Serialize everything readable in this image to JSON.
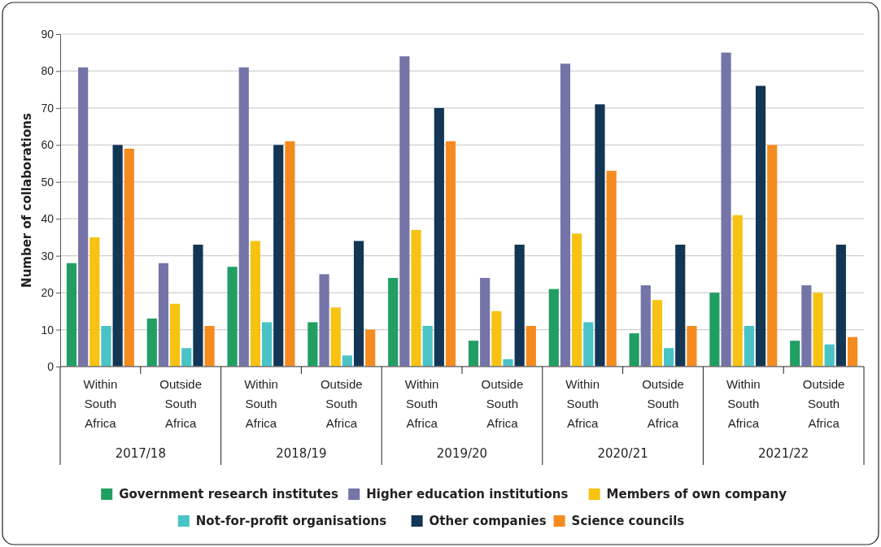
{
  "chart_data": {
    "type": "bar",
    "ylabel": "Number of collaborations",
    "categories": [
      "Within South Africa",
      "Outside South Africa",
      "Within South Africa",
      "Outside South Africa",
      "Within South Africa",
      "Outside South Africa",
      "Within South Africa",
      "Outside South Africa",
      "Within South Africa",
      "Outside South Africa"
    ],
    "annotations": [
      "2017/18",
      "2018/19",
      "2019/20",
      "2020/21",
      "2021/22"
    ],
    "series": [
      {
        "name": "Government research institutes",
        "color": "#219e62",
        "values": [
          28,
          13,
          27,
          12,
          24,
          7,
          21,
          9,
          20,
          7
        ]
      },
      {
        "name": "Higher education institutions",
        "color": "#7474a8",
        "values": [
          81,
          28,
          81,
          25,
          84,
          24,
          82,
          22,
          85,
          22
        ]
      },
      {
        "name": "Members of own company",
        "color": "#f7c212",
        "values": [
          35,
          17,
          34,
          16,
          37,
          15,
          36,
          18,
          41,
          20
        ]
      },
      {
        "name": "Not-for-profit organisations",
        "color": "#4ac3c6",
        "values": [
          11,
          5,
          12,
          3,
          11,
          2,
          12,
          5,
          11,
          6
        ]
      },
      {
        "name": "Other companies",
        "color": "#123654",
        "values": [
          60,
          33,
          60,
          34,
          70,
          33,
          71,
          33,
          76,
          33
        ]
      },
      {
        "name": "Science councils",
        "color": "#f58b1f",
        "values": [
          59,
          11,
          61,
          10,
          61,
          11,
          53,
          11,
          60,
          8
        ]
      }
    ],
    "ylim": [
      0,
      90
    ],
    "yticks": [
      0,
      10,
      20,
      30,
      40,
      50,
      60,
      70,
      80,
      90
    ],
    "grid": "y",
    "legend": "bottom"
  }
}
